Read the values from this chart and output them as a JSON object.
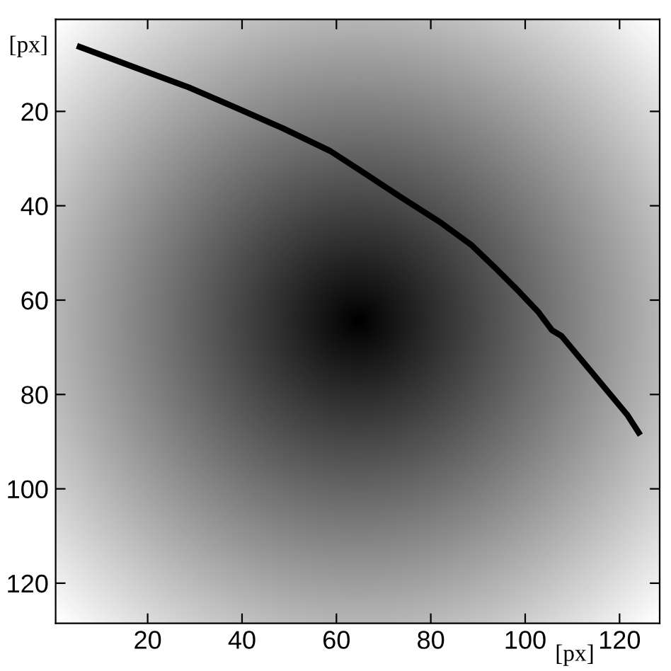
{
  "chart_data": {
    "type": "line",
    "xlabel": "[px]",
    "ylabel": "[px]",
    "series": [
      {
        "color": "#000000",
        "x": [
          5,
          18.7,
          28.7,
          38.7,
          48.7,
          58.7,
          66.7,
          73.7,
          81.7,
          88.7,
          93.7,
          98.7,
          102.7,
          105.7,
          107.7,
          115.7,
          121.7,
          124.4
        ],
        "values": [
          6.1,
          11.2,
          14.9,
          19.2,
          23.6,
          28.4,
          33.6,
          38.2,
          43.3,
          48.4,
          53.2,
          58.2,
          62.4,
          66.4,
          67.6,
          77.2,
          84.4,
          88.6
        ]
      }
    ],
    "xlim": [
      0.5,
      128.5
    ],
    "ylim": [
      128.5,
      0.5
    ],
    "xticks": [
      20,
      40,
      60,
      80,
      100,
      120
    ],
    "yticks": [
      20,
      40,
      60,
      80,
      100,
      120
    ],
    "grid": false,
    "marker": "none",
    "line_style": "solid",
    "legend": false
  }
}
